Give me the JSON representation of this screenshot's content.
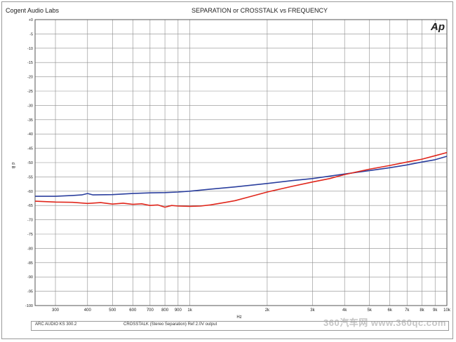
{
  "header": {
    "company": "Cogent Audio Labs",
    "ap_logo": "Ap"
  },
  "footer": {
    "device": "ARC AUDIO KS 300.2",
    "measurement": "CROSSTALK  (Stereo Separation)  Ref 2.0V output"
  },
  "watermark": "360汽车网 www.360qc.com",
  "chart_data": {
    "type": "line",
    "title": "SEPARATION or CROSSTALK vs FREQUENCY",
    "xlabel": "Hz",
    "ylabel": "d B",
    "xscale": "log",
    "xlim": [
      250,
      10000
    ],
    "ylim": [
      -100,
      0
    ],
    "grid": true,
    "x_ticks": [
      300,
      400,
      500,
      600,
      700,
      800,
      900,
      1000,
      2000,
      3000,
      4000,
      5000,
      6000,
      7000,
      8000,
      9000,
      10000
    ],
    "x_tick_labels": [
      "300",
      "400",
      "500",
      "600",
      "700",
      "800",
      "900",
      "1k",
      "2k",
      "3k",
      "4k",
      "5k",
      "6k",
      "7k",
      "8k",
      "9k",
      "10k"
    ],
    "y_ticks": [
      0,
      -5,
      -10,
      -15,
      -20,
      -25,
      -30,
      -35,
      -40,
      -45,
      -50,
      -55,
      -60,
      -65,
      -70,
      -75,
      -80,
      -85,
      -90,
      -95,
      -100
    ],
    "y_tick_labels": [
      "+0",
      "-5",
      "-10",
      "-15",
      "-20",
      "-25",
      "-30",
      "-35",
      "-40",
      "-45",
      "-50",
      "-55",
      "-60",
      "-65",
      "-70",
      "-75",
      "-80",
      "-85",
      "-90",
      "-95",
      "-100"
    ],
    "series": [
      {
        "color": "#2b3f9e",
        "points": [
          [
            250,
            -61.8
          ],
          [
            300,
            -61.8
          ],
          [
            350,
            -61.5
          ],
          [
            380,
            -61.3
          ],
          [
            400,
            -60.8
          ],
          [
            420,
            -61.3
          ],
          [
            500,
            -61.2
          ],
          [
            600,
            -60.8
          ],
          [
            700,
            -60.6
          ],
          [
            800,
            -60.5
          ],
          [
            900,
            -60.3
          ],
          [
            1000,
            -60.0
          ],
          [
            1200,
            -59.3
          ],
          [
            1500,
            -58.5
          ],
          [
            2000,
            -57.3
          ],
          [
            2500,
            -56.3
          ],
          [
            3000,
            -55.6
          ],
          [
            4000,
            -54.0
          ],
          [
            5000,
            -52.8
          ],
          [
            6000,
            -51.8
          ],
          [
            7000,
            -50.8
          ],
          [
            8000,
            -49.8
          ],
          [
            9000,
            -49.0
          ],
          [
            10000,
            -47.8
          ]
        ]
      },
      {
        "color": "#e0261b",
        "points": [
          [
            250,
            -63.5
          ],
          [
            300,
            -63.8
          ],
          [
            350,
            -63.9
          ],
          [
            400,
            -64.3
          ],
          [
            450,
            -64.0
          ],
          [
            500,
            -64.5
          ],
          [
            550,
            -64.2
          ],
          [
            600,
            -64.6
          ],
          [
            650,
            -64.4
          ],
          [
            700,
            -65.0
          ],
          [
            750,
            -64.8
          ],
          [
            800,
            -65.6
          ],
          [
            850,
            -65.0
          ],
          [
            900,
            -65.2
          ],
          [
            1000,
            -65.3
          ],
          [
            1100,
            -65.2
          ],
          [
            1200,
            -64.8
          ],
          [
            1300,
            -64.3
          ],
          [
            1400,
            -63.8
          ],
          [
            1500,
            -63.3
          ],
          [
            1700,
            -62.0
          ],
          [
            2000,
            -60.3
          ],
          [
            2500,
            -58.3
          ],
          [
            3000,
            -56.8
          ],
          [
            3500,
            -55.6
          ],
          [
            4000,
            -54.2
          ],
          [
            5000,
            -52.3
          ],
          [
            6000,
            -51.0
          ],
          [
            7000,
            -49.8
          ],
          [
            8000,
            -48.8
          ],
          [
            9000,
            -47.6
          ],
          [
            10000,
            -46.5
          ]
        ]
      }
    ]
  }
}
